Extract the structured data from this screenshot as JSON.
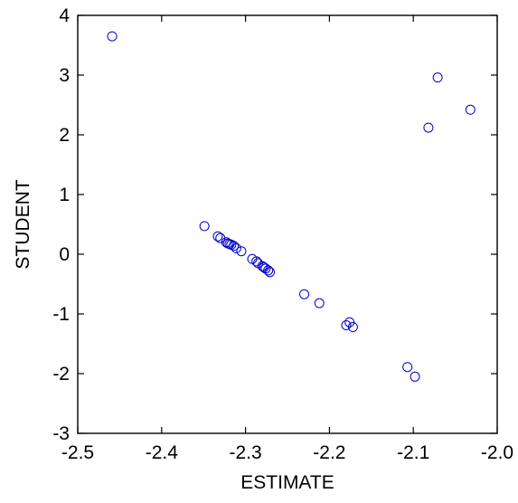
{
  "chart_data": {
    "type": "scatter",
    "title": "",
    "xlabel": "ESTIMATE",
    "ylabel": "STUDENT",
    "xlim": [
      -2.5,
      -2.0
    ],
    "ylim": [
      -3,
      4
    ],
    "xticks": [
      -2.5,
      -2.4,
      -2.3,
      -2.2,
      -2.1,
      -2.0
    ],
    "xtick_labels": [
      "-2.5",
      "-2.4",
      "-2.3",
      "-2.2",
      "-2.1",
      "-2.0"
    ],
    "yticks": [
      -3,
      -2,
      -1,
      0,
      1,
      2,
      3,
      4
    ],
    "ytick_labels": [
      "-3",
      "-2",
      "-1",
      "0",
      "1",
      "2",
      "3",
      "4"
    ],
    "grid": false,
    "marker": "open-circle",
    "marker_color": "#0000cc",
    "series": [
      {
        "points": [
          {
            "x": -2.459,
            "y": 3.65
          },
          {
            "x": -2.349,
            "y": 0.47
          },
          {
            "x": -2.333,
            "y": 0.3
          },
          {
            "x": -2.33,
            "y": 0.27
          },
          {
            "x": -2.323,
            "y": 0.2
          },
          {
            "x": -2.321,
            "y": 0.18
          },
          {
            "x": -2.319,
            "y": 0.17
          },
          {
            "x": -2.317,
            "y": 0.16
          },
          {
            "x": -2.314,
            "y": 0.14
          },
          {
            "x": -2.311,
            "y": 0.1
          },
          {
            "x": -2.305,
            "y": 0.05
          },
          {
            "x": -2.292,
            "y": -0.08
          },
          {
            "x": -2.287,
            "y": -0.12
          },
          {
            "x": -2.285,
            "y": -0.15
          },
          {
            "x": -2.28,
            "y": -0.2
          },
          {
            "x": -2.278,
            "y": -0.22
          },
          {
            "x": -2.276,
            "y": -0.24
          },
          {
            "x": -2.273,
            "y": -0.27
          },
          {
            "x": -2.271,
            "y": -0.3
          },
          {
            "x": -2.23,
            "y": -0.67
          },
          {
            "x": -2.212,
            "y": -0.82
          },
          {
            "x": -2.18,
            "y": -1.19
          },
          {
            "x": -2.176,
            "y": -1.14
          },
          {
            "x": -2.172,
            "y": -1.22
          },
          {
            "x": -2.107,
            "y": -1.89
          },
          {
            "x": -2.098,
            "y": -2.05
          },
          {
            "x": -2.082,
            "y": 2.12
          },
          {
            "x": -2.071,
            "y": 2.96
          },
          {
            "x": -2.032,
            "y": 2.42
          }
        ]
      }
    ]
  }
}
